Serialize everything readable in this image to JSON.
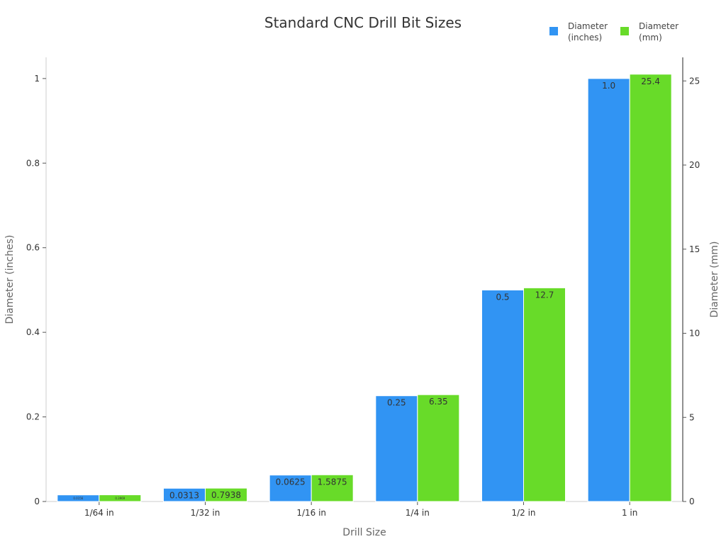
{
  "title": "Standard CNC Drill Bit Sizes",
  "legend": [
    {
      "label": "Diameter\n(inches)",
      "color": "#3194f3"
    },
    {
      "label": "Diameter\n(mm)",
      "color": "#68db29"
    }
  ],
  "chart_data": {
    "type": "bar",
    "title": "Standard CNC Drill Bit Sizes",
    "xlabel": "Drill Size",
    "ylabel": "Diameter (inches)",
    "y2label": "Diameter (mm)",
    "categories": [
      "1/64 in",
      "1/32 in",
      "1/16 in",
      "1/4 in",
      "1/2 in",
      "1 in"
    ],
    "series": [
      {
        "name": "Diameter (inches)",
        "axis": "left",
        "color": "#3194f3",
        "values": [
          0.0156,
          0.0313,
          0.0625,
          0.25,
          0.5,
          1.0
        ],
        "labels": [
          "0.0156",
          "0.0313",
          "0.0625",
          "0.25",
          "0.5",
          "1.0"
        ]
      },
      {
        "name": "Diameter (mm)",
        "axis": "right",
        "color": "#68db29",
        "values": [
          0.3969,
          0.7938,
          1.5875,
          6.35,
          12.7,
          25.4
        ],
        "labels": [
          "0.3969",
          "0.7938",
          "1.5875",
          "6.35",
          "12.7",
          "25.4"
        ]
      }
    ],
    "ylim": [
      0,
      1.05
    ],
    "y2lim": [
      0,
      26.4
    ],
    "yticks": [
      0,
      0.2,
      0.4,
      0.6,
      0.8,
      1
    ],
    "ytick_labels": [
      "0",
      "0.2",
      "0.4",
      "0.6",
      "0.8",
      "1"
    ],
    "y2ticks": [
      0,
      5,
      10,
      15,
      20,
      25
    ],
    "grid": false,
    "legend_position": "top-right"
  }
}
